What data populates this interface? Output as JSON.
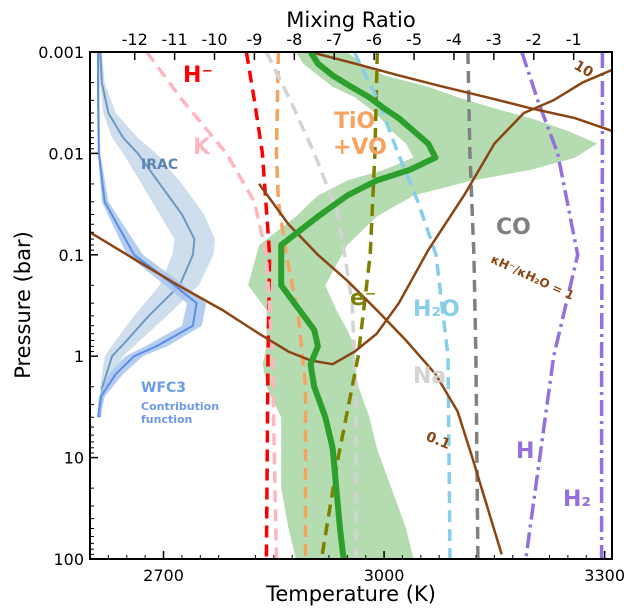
{
  "chart_data": {
    "type": "line",
    "xlabel": "Temperature (K)",
    "x2label": "Mixing Ratio",
    "ylabel": "Pressure (bar)",
    "xlim": [
      2600,
      3310
    ],
    "x2lim": [
      -13.12,
      -0.04
    ],
    "ylim": [
      0.001,
      100
    ],
    "yscale": "log",
    "yinverted": true,
    "xticks": [
      {
        "value": 2700,
        "label": "2700"
      },
      {
        "value": 3000,
        "label": "3000"
      },
      {
        "value": 3300,
        "label": "3300"
      }
    ],
    "x2ticks": [
      {
        "value": -12,
        "label": "-12"
      },
      {
        "value": -11,
        "label": "-11"
      },
      {
        "value": -10,
        "label": "-10"
      },
      {
        "value": -9,
        "label": "-9"
      },
      {
        "value": -8,
        "label": "-8"
      },
      {
        "value": -7,
        "label": "-7"
      },
      {
        "value": -6,
        "label": "-6"
      },
      {
        "value": -5,
        "label": "-5"
      },
      {
        "value": -4,
        "label": "-4"
      },
      {
        "value": -3,
        "label": "-3"
      },
      {
        "value": -2,
        "label": "-2"
      },
      {
        "value": -1,
        "label": "-1"
      }
    ],
    "yticks": [
      {
        "value": 0.001,
        "label": "0.001"
      },
      {
        "value": 0.01,
        "label": "0.01"
      },
      {
        "value": 0.1,
        "label": "0.1"
      },
      {
        "value": 1,
        "label": "1"
      },
      {
        "value": 10,
        "label": "10"
      },
      {
        "value": 100,
        "label": "100"
      }
    ],
    "colors": {
      "tp": "#2ca02c",
      "tp_band": "#b5dbb1",
      "irac": "#6e98c0",
      "irac_band": "#c7d8e9",
      "wfc3": "#5a8ee6",
      "wfc3_band": "#a9c4f0",
      "ratio_line": "#8b4513",
      "H-": "#ff0000",
      "K": "#ffb6c1",
      "TiO+VO": "#f4a460",
      "Na": "#d3d3d3",
      "e-": "#808000",
      "H2O": "#87ceeb",
      "CO": "#808080",
      "H": "#9370db",
      "H2": "#9370db"
    },
    "tp_profile": {
      "name": "",
      "t": [
        2900,
        2910,
        2930,
        2955,
        2980,
        3000,
        3020,
        3040,
        3060,
        3070,
        3035,
        2990,
        2950,
        2910,
        2860,
        2860,
        2885,
        2905,
        2910,
        2900,
        2905,
        2920,
        2930,
        2935,
        2940,
        2945
      ],
      "p": [
        0.001,
        0.0013,
        0.0017,
        0.0022,
        0.0028,
        0.0036,
        0.0045,
        0.006,
        0.008,
        0.011,
        0.0145,
        0.0185,
        0.026,
        0.042,
        0.08,
        0.2,
        0.35,
        0.55,
        0.8,
        1.2,
        2.0,
        4.0,
        8.0,
        20,
        50,
        100
      ]
    },
    "tp_band": {
      "t_low": [
        2880,
        2890,
        2910,
        2930,
        2960,
        2980,
        2995,
        3010,
        3030,
        3040,
        3000,
        2950,
        2910,
        2880,
        2830,
        2815,
        2840,
        2840,
        2840,
        2835,
        2840,
        2860,
        2860,
        2860,
        2870,
        2880
      ],
      "t_high": [
        2950,
        2970,
        3000,
        3060,
        3100,
        3150,
        3200,
        3250,
        3290,
        3260,
        3200,
        3120,
        3040,
        2990,
        2950,
        2920,
        2935,
        2950,
        2960,
        2960,
        2965,
        2980,
        2990,
        3010,
        3030,
        3040
      ]
    },
    "ratio_curves": [
      {
        "label": "κH⁻/κH₂O = 1",
        "t": [
          2600,
          2660,
          2720,
          2780,
          2830,
          2870,
          2900,
          2930,
          2960,
          2990,
          3020,
          3060,
          3110,
          3150,
          3190,
          3230,
          3270,
          3310
        ],
        "p": [
          0.06,
          0.11,
          0.2,
          0.35,
          0.6,
          0.9,
          1.1,
          1.2,
          0.9,
          0.6,
          0.3,
          0.09,
          0.025,
          0.008,
          0.004,
          0.003,
          0.002,
          0.0015
        ]
      },
      {
        "label": "0.1",
        "t": [
          2830,
          2870,
          2910,
          2950,
          2990,
          3030,
          3070,
          3100,
          3120,
          3140,
          3160
        ],
        "p": [
          0.02,
          0.05,
          0.1,
          0.18,
          0.35,
          0.7,
          1.5,
          3.5,
          10,
          30,
          90
        ]
      },
      {
        "label": "10",
        "t": [
          2900,
          2960,
          3020,
          3080,
          3140,
          3200,
          3260,
          3310
        ],
        "p": [
          0.001,
          0.0013,
          0.0017,
          0.0022,
          0.0028,
          0.0036,
          0.0045,
          0.006
        ]
      }
    ],
    "species": [
      {
        "name": "H⁻",
        "dash": "dashed",
        "x": [
          -9.2,
          -9.0,
          -8.8,
          -8.62,
          -8.66,
          -8.7
        ],
        "p": [
          0.001,
          0.003,
          0.01,
          0.1,
          1,
          100
        ]
      },
      {
        "name": "K",
        "dash": "dashed",
        "x": [
          -11.7,
          -10.8,
          -9.7,
          -9.0,
          -8.7,
          -8.55,
          -8.45
        ],
        "p": [
          0.001,
          0.003,
          0.01,
          0.03,
          0.1,
          1,
          100
        ]
      },
      {
        "name": "TiO+VO",
        "dash": "dashed",
        "x": [
          -8.4,
          -8.45,
          -8.4,
          -8.2,
          -7.9,
          -7.72,
          -7.72
        ],
        "p": [
          0.001,
          0.01,
          0.03,
          0.1,
          0.4,
          2,
          100
        ]
      },
      {
        "name": "Na",
        "dash": "dashed",
        "x": [
          -8.7,
          -8.1,
          -7.5,
          -6.9,
          -6.55,
          -6.45,
          -6.45
        ],
        "p": [
          0.001,
          0.003,
          0.01,
          0.04,
          0.3,
          3,
          100
        ]
      },
      {
        "name": "e⁻",
        "dash": "dashed",
        "x": [
          -5.92,
          -5.98,
          -6.1,
          -6.4,
          -6.9,
          -7.32
        ],
        "p": [
          0.001,
          0.01,
          0.1,
          1,
          10,
          100
        ]
      },
      {
        "name": "H₂O",
        "dash": "dashed",
        "x": [
          -6.5,
          -5.9,
          -5.4,
          -4.9,
          -4.45,
          -4.15,
          -4.1
        ],
        "p": [
          0.001,
          0.003,
          0.01,
          0.03,
          0.1,
          1,
          100
        ]
      },
      {
        "name": "CO",
        "dash": "dashed",
        "x": [
          -3.65,
          -3.6,
          -3.5,
          -3.45,
          -3.4
        ],
        "p": [
          0.001,
          0.01,
          0.1,
          1,
          100
        ]
      },
      {
        "name": "H",
        "dash": "dashdot",
        "x": [
          -2.3,
          -1.9,
          -1.4,
          -0.9,
          -1.5,
          -2.2
        ],
        "p": [
          0.001,
          0.003,
          0.01,
          0.1,
          1,
          100
        ]
      },
      {
        "name": "H₂",
        "dash": "dashdot",
        "x": [
          -0.28,
          -0.28,
          -0.29,
          -0.3,
          -0.3
        ],
        "p": [
          0.001,
          0.01,
          0.1,
          1,
          100
        ]
      }
    ],
    "contribution_functions": [
      {
        "name": "IRAC",
        "p": [
          0.001,
          0.002,
          0.004,
          0.007,
          0.01,
          0.02,
          0.04,
          0.07,
          0.1,
          0.2,
          0.4,
          0.7,
          1.0,
          2.0,
          4.0
        ],
        "mid": [
          2614,
          2616,
          2625,
          2645,
          2665,
          2695,
          2725,
          2742,
          2740,
          2722,
          2680,
          2650,
          2630,
          2617,
          2613
        ],
        "low": [
          2613,
          2614,
          2618,
          2630,
          2645,
          2670,
          2695,
          2715,
          2712,
          2695,
          2660,
          2635,
          2620,
          2614,
          2612
        ],
        "high": [
          2616,
          2620,
          2635,
          2665,
          2690,
          2725,
          2755,
          2770,
          2768,
          2748,
          2705,
          2668,
          2645,
          2622,
          2615
        ]
      },
      {
        "name": "WFC3",
        "p": [
          0.001,
          0.003,
          0.01,
          0.03,
          0.1,
          0.2,
          0.3,
          0.5,
          0.8,
          1.0,
          1.5,
          2.5,
          4.0
        ],
        "mid": [
          2611,
          2611,
          2612,
          2620,
          2660,
          2715,
          2745,
          2740,
          2690,
          2660,
          2635,
          2615,
          2611
        ],
        "low": [
          2610,
          2610,
          2611,
          2616,
          2650,
          2702,
          2732,
          2725,
          2675,
          2648,
          2626,
          2612,
          2610
        ],
        "high": [
          2613,
          2613,
          2614,
          2625,
          2672,
          2728,
          2758,
          2752,
          2705,
          2672,
          2645,
          2620,
          2613
        ]
      }
    ],
    "annotations": {
      "h_minus": "H⁻",
      "k": "K",
      "tio": "TiO",
      "vo": "+VO",
      "e_minus": "e⁻",
      "h2o": "H₂O",
      "na": "Na",
      "co": "CO",
      "h": "H",
      "h2": "H₂",
      "irac": "IRAC",
      "wfc3": "WFC3",
      "contrib_line1": "Contribution",
      "contrib_line2": "function",
      "ratio_1": "κH⁻/κH₂O = 1",
      "ratio_01": "0.1",
      "ratio_10": "10"
    }
  }
}
